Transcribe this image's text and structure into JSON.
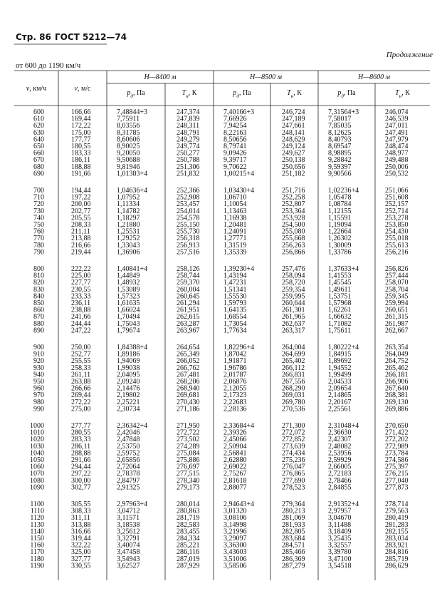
{
  "header": {
    "page": "Стр. 86",
    "standard": "ГОСТ 5212—74",
    "continuation": "Продолжение",
    "range": "от 600 до 1190 км/ч"
  },
  "table": {
    "columns": [
      {
        "symbol": "v",
        "sub": "",
        "unit": ", км/ч"
      },
      {
        "symbol": "v",
        "sub": "",
        "unit": ", м/с"
      }
    ],
    "groups": [
      "H—8400 м",
      "H—8500 м",
      "H—8600 м"
    ],
    "subcolumns": [
      {
        "symbol": "p",
        "sub": "д",
        "unit": ", Па"
      },
      {
        "symbol": "T",
        "sub": "н",
        "unit": ", К"
      },
      {
        "symbol": "p",
        "sub": "д",
        "unit": ", Па"
      },
      {
        "symbol": "T",
        "sub": "н",
        "unit": ", К"
      },
      {
        "symbol": "p",
        "sub": "д",
        "unit": ", Па"
      },
      {
        "symbol": "T",
        "sub": "н",
        "unit": ", К"
      }
    ],
    "rows": [
      [
        "600",
        "166,66",
        "7,48844+3",
        "247,374",
        "7,40166+3",
        "246,724",
        "7,31564+3",
        "246,074"
      ],
      [
        "610",
        "169,44",
        "7,75911",
        "247,839",
        "7,66926",
        "247,189",
        "7,58017",
        "246,539"
      ],
      [
        "620",
        "172,22",
        "8,03556",
        "248,311",
        "7,94254",
        "247,661",
        "7,85035",
        "247,011"
      ],
      [
        "630",
        "175,00",
        "8,31785",
        "248,791",
        "8,22163",
        "248,141",
        "8,12625",
        "247,491"
      ],
      [
        "640",
        "177,77",
        "8,60606",
        "249,279",
        "8,50656",
        "248,629",
        "8,40793",
        "247,979"
      ],
      [
        "650",
        "180,55",
        "8,90025",
        "249,774",
        "8,79741",
        "249,124",
        "8,69547",
        "248,474"
      ],
      [
        "660",
        "183,33",
        "9,20050",
        "250,277",
        "9,09426",
        "249,627",
        "8,98895",
        "248,977"
      ],
      [
        "670",
        "186,11",
        "9,50688",
        "250,788",
        "9,39717",
        "250,138",
        "9,28842",
        "249,488"
      ],
      [
        "680",
        "188,88",
        "9,81946",
        "251,306",
        "9,70622",
        "250,656",
        "9,59397",
        "250,006"
      ],
      [
        "690",
        "191,66",
        "1,01383+4",
        "251,832",
        "1,00215+4",
        "251,182",
        "9,90566",
        "250,532"
      ],
      [
        "700",
        "194,44",
        "1,04636+4",
        "252,366",
        "1,03430+4",
        "251,716",
        "1,02236+4",
        "251,066"
      ],
      [
        "710",
        "197,22",
        "1,07952",
        "252,908",
        "1,06710",
        "252,258",
        "1,05478",
        "251,608"
      ],
      [
        "720",
        "200,00",
        "1,11334",
        "253,457",
        "1,10054",
        "252,807",
        "1,08784",
        "252,157"
      ],
      [
        "730",
        "202,77",
        "1,14782",
        "254,014",
        "1,13463",
        "253,364",
        "1,12155",
        "252,714"
      ],
      [
        "740",
        "205,55",
        "1,18297",
        "254,578",
        "1,16938",
        "253,928",
        "1,15591",
        "253,278"
      ],
      [
        "750",
        "208,33",
        "1,21880",
        "255,150",
        "1,20481",
        "254,500",
        "1,19094",
        "253,850"
      ],
      [
        "760",
        "211,11",
        "1,25531",
        "255,730",
        "1,24091",
        "255,080",
        "1,22664",
        "254,430"
      ],
      [
        "770",
        "213,88",
        "1,29252",
        "256,318",
        "1,27771",
        "255,668",
        "1,26302",
        "255,018"
      ],
      [
        "780",
        "216,66",
        "1,33043",
        "256,913",
        "1,31519",
        "256,263",
        "1,30009",
        "255,613"
      ],
      [
        "790",
        "219,44",
        "1,36906",
        "257,516",
        "1,35339",
        "256,866",
        "1,33786",
        "256,216"
      ],
      [
        "800",
        "222,22",
        "1,40841+4",
        "258,126",
        "1,39230+4",
        "257,476",
        "1,37633+4",
        "256,826"
      ],
      [
        "810",
        "225,00",
        "1,44849",
        "258,744",
        "1,43194",
        "258,094",
        "1,41553",
        "257,444"
      ],
      [
        "820",
        "227,77",
        "1,48932",
        "259,370",
        "1,47231",
        "258,720",
        "1,45545",
        "258,070"
      ],
      [
        "830",
        "230,55",
        "1,53089",
        "260,004",
        "1,51341",
        "259,354",
        "1,49611",
        "258,704"
      ],
      [
        "840",
        "233,33",
        "1,57323",
        "260,645",
        "1,55530",
        "259,995",
        "1,53751",
        "259,345"
      ],
      [
        "850",
        "236,11",
        "1,61635",
        "261,294",
        "1,59793",
        "260,644",
        "1,57968",
        "259,994"
      ],
      [
        "860",
        "238,88",
        "1,66024",
        "261,951",
        "1,64135",
        "261,301",
        "1,62261",
        "260,651"
      ],
      [
        "870",
        "241,66",
        "1,70494",
        "262,615",
        "1,68554",
        "261,965",
        "1,66632",
        "261,315"
      ],
      [
        "880",
        "244,44",
        "1,75043",
        "263,287",
        "1,73054",
        "262,637",
        "1,71082",
        "261,987"
      ],
      [
        "890",
        "247,22",
        "1,79674",
        "263,967",
        "1,77634",
        "263,317",
        "1,75611",
        "262,667"
      ],
      [
        "900",
        "250,00",
        "1,84388+4",
        "264,654",
        "1,82296+4",
        "264,004",
        "1,80222+4",
        "263,354"
      ],
      [
        "910",
        "252,77",
        "1,89186",
        "265,349",
        "1,87042",
        "264,699",
        "1,84915",
        "264,049"
      ],
      [
        "920",
        "255,55",
        "1,94069",
        "266,052",
        "1,91871",
        "265,402",
        "1,89692",
        "264,752"
      ],
      [
        "930",
        "258,33",
        "1,99038",
        "266,762",
        "1,96786",
        "266,112",
        "1,94552",
        "265,462"
      ],
      [
        "940",
        "261,11",
        "2,04095",
        "267,481",
        "2,01787",
        "266,831",
        "1,99499",
        "266,181"
      ],
      [
        "950",
        "263,88",
        "2,09240",
        "268,206",
        "2,06876",
        "267,556",
        "2,04533",
        "266,906"
      ],
      [
        "960",
        "266,66",
        "2,14476",
        "268,940",
        "2,12055",
        "268,290",
        "2,09654",
        "267,640"
      ],
      [
        "970",
        "269,44",
        "2,19802",
        "269,681",
        "2,17323",
        "269,031",
        "2,14865",
        "268,381"
      ],
      [
        "980",
        "272,22",
        "2,25221",
        "270,430",
        "2,22683",
        "269,780",
        "2,20167",
        "269,130"
      ],
      [
        "990",
        "275,00",
        "2,30734",
        "271,186",
        "2,28136",
        "270,536",
        "2,25561",
        "269,886"
      ],
      [
        "1000",
        "277,77",
        "2,36342+4",
        "271,950",
        "2,33684+4",
        "271,300",
        "2,31048+4",
        "270,650"
      ],
      [
        "1010",
        "280,55",
        "2,42046",
        "272,722",
        "2,39326",
        "272,072",
        "2,36630",
        "271,422"
      ],
      [
        "1020",
        "283,33",
        "2,47848",
        "273,502",
        "2,45066",
        "272,852",
        "2,42307",
        "272,202"
      ],
      [
        "1030",
        "286,11",
        "2,53750",
        "274,289",
        "2,50904",
        "273,639",
        "2,48082",
        "272,989"
      ],
      [
        "1040",
        "288,88",
        "2,59752",
        "275,084",
        "2,56841",
        "274,434",
        "2,53956",
        "273,784"
      ],
      [
        "1050",
        "291,66",
        "2,65856",
        "275,886",
        "2,62880",
        "275,236",
        "2,59929",
        "274,586"
      ],
      [
        "1060",
        "294,44",
        "2,72064",
        "276,697",
        "2,69022",
        "276,047",
        "2,66005",
        "275,397"
      ],
      [
        "1070",
        "297,22",
        "2,78378",
        "277,515",
        "2,75267",
        "276,865",
        "2,72183",
        "276,215"
      ],
      [
        "1080",
        "300,00",
        "2,84797",
        "278,340",
        "2,81618",
        "277,690",
        "2,78466",
        "277,040"
      ],
      [
        "1090",
        "302,77",
        "2,91325",
        "279,173",
        "2,88077",
        "278,523",
        "2,84855",
        "277,873"
      ],
      [
        "1100",
        "305,55",
        "2,97963+4",
        "280,014",
        "2,94643+4",
        "279,364",
        "2,91352+4",
        "278,714"
      ],
      [
        "1110",
        "308,33",
        "3,04712",
        "280,863",
        "3,01320",
        "280,213",
        "2,97957",
        "279,563"
      ],
      [
        "1120",
        "311,11",
        "3,11571",
        "281,719",
        "3,08106",
        "281,069",
        "3,04670",
        "280,419"
      ],
      [
        "1130",
        "313,88",
        "3,18538",
        "282,583",
        "3,14998",
        "281,933",
        "3,11488",
        "281,283"
      ],
      [
        "1140",
        "316,66",
        "3,25612",
        "283,455",
        "3,21996",
        "282,805",
        "3,18409",
        "282,155"
      ],
      [
        "1150",
        "319,44",
        "3,32791",
        "284,334",
        "3,29097",
        "283,684",
        "3,25435",
        "283,034"
      ],
      [
        "1160",
        "322,22",
        "3,40074",
        "285,221",
        "3,36300",
        "284,571",
        "3,32557",
        "283,921"
      ],
      [
        "1170",
        "325,00",
        "3,47458",
        "286,116",
        "3,43603",
        "285,466",
        "3,39780",
        "284,816"
      ],
      [
        "1180",
        "327,77",
        "3,54943",
        "287,019",
        "3,51006",
        "286,369",
        "3,47100",
        "285,719"
      ],
      [
        "1190",
        "330,55",
        "3,62527",
        "287,929",
        "3,58506",
        "287,279",
        "3,54518",
        "286,629"
      ]
    ]
  }
}
